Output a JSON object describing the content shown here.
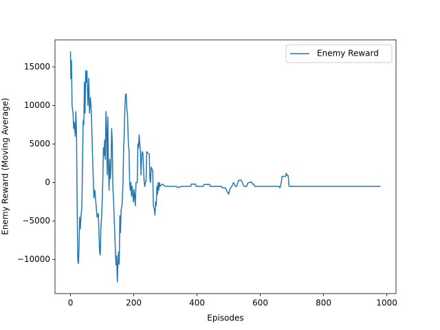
{
  "chart_data": {
    "type": "line",
    "x_label": "Episodes",
    "y_label": "Enemy Reward (Moving Average)",
    "x": [
      0,
      1,
      3,
      5,
      8,
      10,
      12,
      15,
      17,
      19,
      21,
      23,
      25,
      27,
      29,
      31,
      33,
      36,
      40,
      42,
      44,
      46,
      48,
      50,
      52,
      55,
      58,
      60,
      63,
      66,
      70,
      74,
      77,
      80,
      84,
      88,
      92,
      94,
      96,
      99,
      102,
      104,
      106,
      108,
      110,
      112,
      114,
      116,
      118,
      120,
      122,
      124,
      126,
      128,
      130,
      132,
      134,
      136,
      138,
      140,
      142,
      144,
      146,
      148,
      150,
      152,
      154,
      156,
      158,
      160,
      163,
      166,
      168,
      170,
      172,
      174,
      176,
      178,
      180,
      183,
      185,
      187,
      189,
      191,
      193,
      195,
      197,
      199,
      201,
      203,
      205,
      207,
      211,
      213,
      215,
      217,
      219,
      221,
      223,
      225,
      227,
      229,
      231,
      233,
      235,
      237,
      239,
      241,
      245,
      249,
      251,
      253,
      255,
      260,
      262,
      265,
      267,
      269,
      271,
      273,
      275,
      277,
      279,
      281,
      283,
      290,
      300,
      335,
      337,
      345,
      350,
      380,
      382,
      395,
      397,
      420,
      422,
      440,
      442,
      478,
      480,
      490,
      493,
      497,
      500,
      503,
      506,
      510,
      515,
      518,
      521,
      525,
      528,
      532,
      540,
      543,
      546,
      549,
      557,
      560,
      565,
      572,
      575,
      580,
      583,
      660,
      662,
      665,
      669,
      680,
      682,
      685,
      688,
      691,
      980
    ],
    "series": [
      {
        "name": "Enemy Reward",
        "color": "#1f77b4",
        "values": [
          17000,
          13500,
          15800,
          10000,
          9000,
          7000,
          7800,
          6000,
          9200,
          6500,
          -3000,
          -10000,
          -10500,
          -8500,
          -4500,
          -6000,
          -4500,
          -3000,
          8000,
          7500,
          13000,
          9000,
          14500,
          13000,
          14500,
          10000,
          13500,
          9000,
          11000,
          9000,
          3000,
          -2000,
          -1000,
          -2500,
          -4500,
          -4000,
          -9000,
          -9400,
          -6000,
          -4000,
          0,
          4500,
          3500,
          5500,
          3000,
          9200,
          7000,
          1000,
          8500,
          2000,
          -1000,
          3000,
          500,
          2000,
          7000,
          5500,
          -800,
          -2000,
          -4500,
          -6500,
          -9000,
          -10700,
          -9500,
          -12900,
          -10500,
          -9000,
          -10600,
          -4300,
          -6500,
          -3500,
          -3000,
          0,
          4500,
          6500,
          9800,
          11400,
          11500,
          9500,
          9000,
          5000,
          4200,
          0,
          -1000,
          0,
          -1800,
          -500,
          -1500,
          -2500,
          -900,
          -2000,
          -3000,
          0,
          0,
          5000,
          4500,
          6200,
          5000,
          4000,
          1000,
          3500,
          4000,
          3800,
          1800,
          0,
          -500,
          0,
          300,
          4000,
          3800,
          3700,
          400,
          0,
          2000,
          1500,
          -3000,
          -3500,
          -4200,
          -2500,
          -3000,
          -500,
          -1500,
          0,
          -1000,
          0,
          -500,
          -200,
          -500,
          -500,
          -600,
          -600,
          -500,
          -500,
          -200,
          -200,
          -500,
          -500,
          -250,
          -250,
          -500,
          -500,
          -700,
          -700,
          -1000,
          -1300,
          -1500,
          -1000,
          -700,
          -500,
          0,
          -200,
          -500,
          -500,
          -100,
          300,
          300,
          0,
          -300,
          -500,
          -500,
          -100,
          0,
          100,
          -200,
          -200,
          -500,
          -500,
          -700,
          -300,
          800,
          800,
          1200,
          900,
          900,
          -500,
          -500
        ]
      }
    ],
    "xlim": [
      -49,
      1029
    ],
    "ylim": [
      -14400,
      18500
    ],
    "xticks": [
      0,
      200,
      400,
      600,
      800,
      1000
    ],
    "yticks": [
      {
        "value": -10000,
        "label": "−10000"
      },
      {
        "value": -5000,
        "label": "−5000"
      },
      0,
      5000,
      10000,
      15000
    ],
    "legend": "upper right"
  }
}
